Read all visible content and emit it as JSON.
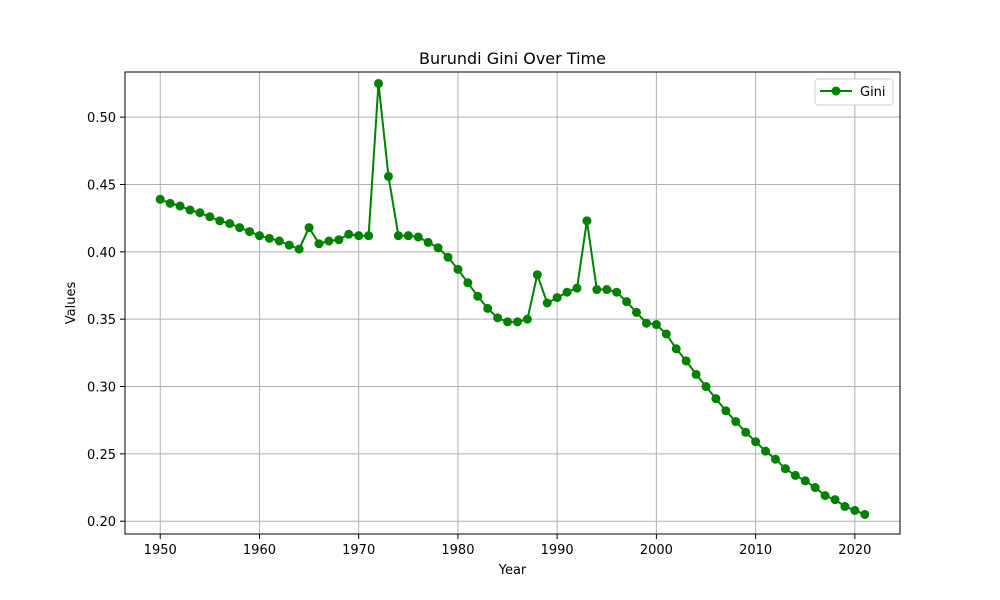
{
  "chart_data": {
    "type": "line",
    "title": "Burundi Gini Over Time",
    "xlabel": "Year",
    "ylabel": "Values",
    "xlim": [
      1946.45,
      2024.55
    ],
    "ylim": [
      0.1905,
      0.5335
    ],
    "x_ticks": [
      1950,
      1960,
      1970,
      1980,
      1990,
      2000,
      2010,
      2020
    ],
    "y_ticks": [
      0.2,
      0.25,
      0.3,
      0.35,
      0.4,
      0.45,
      0.5
    ],
    "x_tick_labels": [
      "1950",
      "1960",
      "1970",
      "1980",
      "1990",
      "2000",
      "2010",
      "2020"
    ],
    "y_tick_labels": [
      "0.20",
      "0.25",
      "0.30",
      "0.35",
      "0.40",
      "0.45",
      "0.50"
    ],
    "grid": true,
    "legend_position": "top-right",
    "series": [
      {
        "name": "Gini",
        "color": "#008000",
        "marker": "circle",
        "x": [
          1950,
          1951,
          1952,
          1953,
          1954,
          1955,
          1956,
          1957,
          1958,
          1959,
          1960,
          1961,
          1962,
          1963,
          1964,
          1965,
          1966,
          1967,
          1968,
          1969,
          1970,
          1971,
          1972,
          1973,
          1974,
          1975,
          1976,
          1977,
          1978,
          1979,
          1980,
          1981,
          1982,
          1983,
          1984,
          1985,
          1986,
          1987,
          1988,
          1989,
          1990,
          1991,
          1992,
          1993,
          1994,
          1995,
          1996,
          1997,
          1998,
          1999,
          2000,
          2001,
          2002,
          2003,
          2004,
          2005,
          2006,
          2007,
          2008,
          2009,
          2010,
          2011,
          2012,
          2013,
          2014,
          2015,
          2016,
          2017,
          2018,
          2019,
          2020,
          2021
        ],
        "values": [
          0.439,
          0.436,
          0.434,
          0.431,
          0.429,
          0.426,
          0.423,
          0.421,
          0.418,
          0.415,
          0.412,
          0.41,
          0.408,
          0.405,
          0.402,
          0.418,
          0.406,
          0.408,
          0.409,
          0.413,
          0.412,
          0.412,
          0.525,
          0.456,
          0.412,
          0.412,
          0.411,
          0.407,
          0.403,
          0.396,
          0.387,
          0.377,
          0.367,
          0.358,
          0.351,
          0.348,
          0.348,
          0.35,
          0.383,
          0.362,
          0.366,
          0.37,
          0.373,
          0.423,
          0.372,
          0.372,
          0.37,
          0.363,
          0.355,
          0.347,
          0.346,
          0.339,
          0.328,
          0.319,
          0.309,
          0.3,
          0.291,
          0.282,
          0.274,
          0.266,
          0.259,
          0.252,
          0.246,
          0.239,
          0.234,
          0.23,
          0.225,
          0.219,
          0.216,
          0.211,
          0.208,
          0.205
        ]
      }
    ]
  }
}
